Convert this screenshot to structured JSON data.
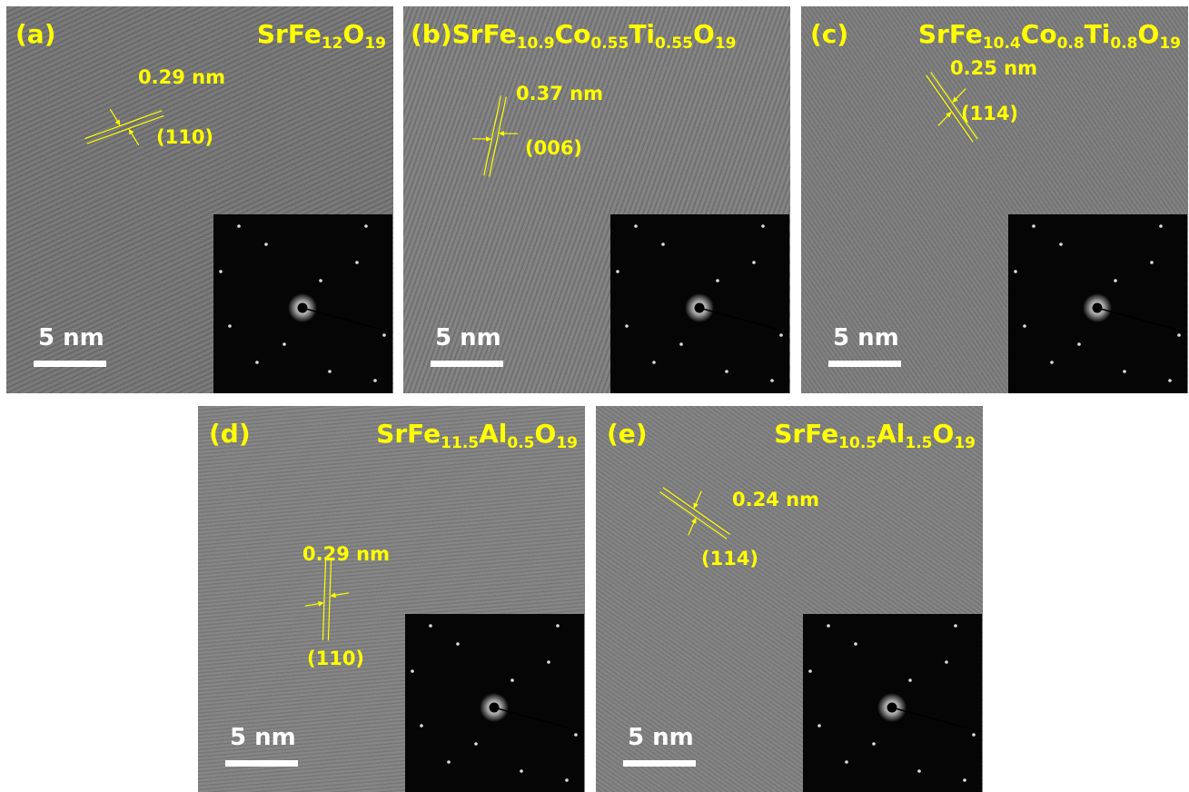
{
  "panels": [
    {
      "label": "(a)",
      "formula": [
        "SrFe",
        "12",
        "O",
        "19"
      ],
      "spacing": "0.29 nm",
      "plane": "(110)",
      "scale_bar": "5 nm"
    },
    {
      "label": "(b)",
      "formula": [
        "SrFe",
        "10.9",
        "Co",
        "0.55",
        "Ti",
        "0.55",
        "O",
        "19"
      ],
      "spacing": "0.37 nm",
      "plane": "(006)",
      "scale_bar": "5 nm"
    },
    {
      "label": "(c)",
      "formula": [
        "SrFe",
        "10.4",
        "Co",
        "0.8",
        "Ti",
        "0.8",
        "O",
        "19"
      ],
      "spacing": "0.25 nm",
      "plane": "(114)",
      "scale_bar": "5 nm"
    },
    {
      "label": "(d)",
      "formula": [
        "SrFe",
        "11.5",
        "Al",
        "0.5",
        "O",
        "19"
      ],
      "spacing": "0.29 nm",
      "plane": "(110)",
      "scale_bar": "5 nm"
    },
    {
      "label": "(e)",
      "formula": [
        "SrFe",
        "10.5",
        "Al",
        "1.5",
        "O",
        "19"
      ],
      "spacing": "0.24 nm",
      "plane": "(114)",
      "scale_bar": "5 nm"
    }
  ]
}
